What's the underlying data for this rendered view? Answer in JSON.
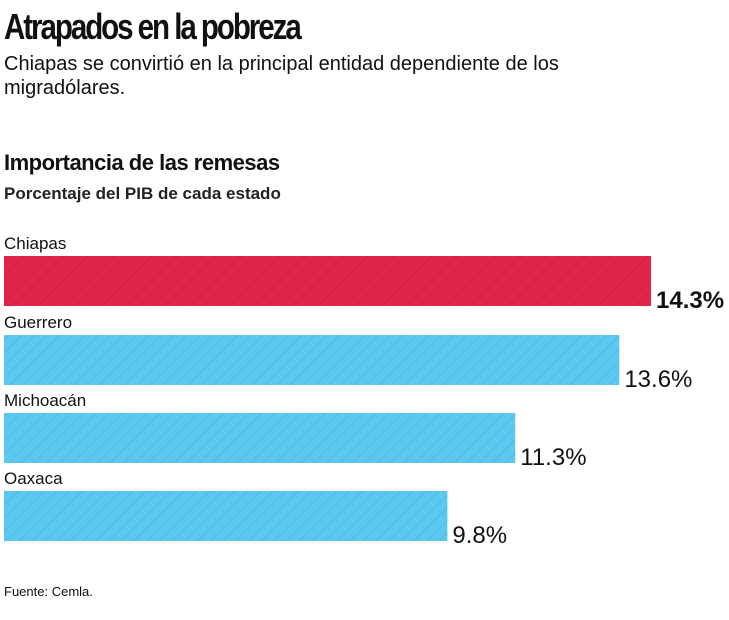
{
  "title": "Atrapados en la pobreza",
  "subtitle": "Chiapas se convirtió en la principal entidad dependiente de los migradólares.",
  "source": "Fuente: Cemla.",
  "chart_data": {
    "type": "bar",
    "orientation": "horizontal",
    "title": "Importancia de las remesas",
    "unit_label": "Porcentaje del PIB de cada estado",
    "categories": [
      "Chiapas",
      "Guerrero",
      "Michoacán",
      "Oaxaca"
    ],
    "values": [
      14.3,
      13.6,
      11.3,
      9.8
    ],
    "value_labels": [
      "14.3%",
      "13.6%",
      "11.3%",
      "9.8%"
    ],
    "highlight_index": 0,
    "colors": {
      "highlight": "#e0244a",
      "default": "#5bc8f0"
    },
    "xlim": [
      0,
      14.3
    ],
    "grid": false
  }
}
